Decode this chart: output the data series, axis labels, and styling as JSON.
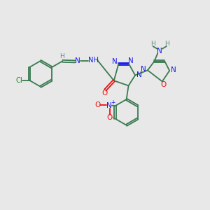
{
  "bg_color": "#e8e8e8",
  "bond_color": "#3a7a52",
  "n_color": "#1a1aee",
  "o_color": "#ee1111",
  "cl_color": "#228822",
  "h_color": "#5a8888",
  "figsize": [
    3.0,
    3.0
  ],
  "dpi": 100,
  "lw": 1.3,
  "fs": 7.2,
  "xlim": [
    0,
    10
  ],
  "ylim": [
    0,
    10
  ]
}
